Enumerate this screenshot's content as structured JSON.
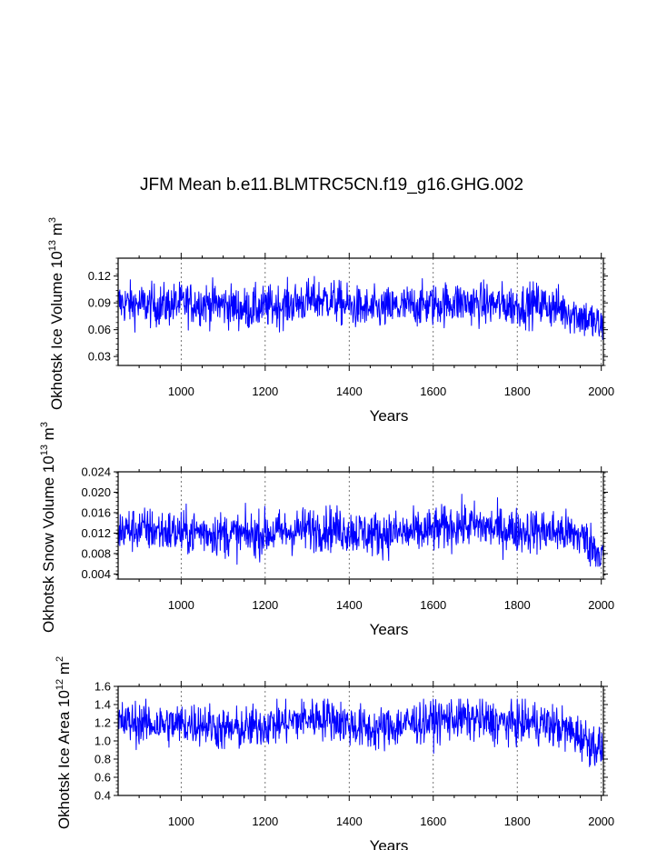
{
  "figure_title": "JFM Mean b.e11.BLMTRC5CN.f19_g16.GHG.002",
  "series_color": "#0000ff",
  "chart_data": [
    {
      "type": "line",
      "xlabel": "Years",
      "ylabel_main": "Okhotsk Ice Volume 10",
      "ylabel_exp": "13",
      "ylabel_unit": " m",
      "ylabel_unit_exp": "3",
      "xlim": [
        850,
        2005
      ],
      "ylim": [
        0.02,
        0.14
      ],
      "xticks": [
        1000,
        1200,
        1400,
        1600,
        1800,
        2000
      ],
      "xtick_labels": [
        "1000",
        "1200",
        "1400",
        "1600",
        "1800",
        "2000"
      ],
      "yticks": [
        0.03,
        0.06,
        0.09,
        0.12
      ],
      "ytick_labels": [
        "0.03",
        "0.06",
        "0.09",
        "0.12"
      ],
      "grid_x": true,
      "series": [
        {
          "name": "Okhotsk Ice Volume",
          "anchors": [
            [
              850,
              0.09
            ],
            [
              900,
              0.088
            ],
            [
              950,
              0.087
            ],
            [
              1000,
              0.089
            ],
            [
              1050,
              0.09
            ],
            [
              1100,
              0.088
            ],
            [
              1150,
              0.083
            ],
            [
              1200,
              0.085
            ],
            [
              1250,
              0.088
            ],
            [
              1300,
              0.092
            ],
            [
              1350,
              0.094
            ],
            [
              1400,
              0.086
            ],
            [
              1450,
              0.082
            ],
            [
              1500,
              0.084
            ],
            [
              1550,
              0.087
            ],
            [
              1600,
              0.088
            ],
            [
              1650,
              0.091
            ],
            [
              1700,
              0.089
            ],
            [
              1750,
              0.088
            ],
            [
              1800,
              0.087
            ],
            [
              1850,
              0.089
            ],
            [
              1900,
              0.084
            ],
            [
              1950,
              0.076
            ],
            [
              2005,
              0.062
            ]
          ],
          "noise": 0.012,
          "range": [
            0.035,
            0.13
          ]
        }
      ]
    },
    {
      "type": "line",
      "xlabel": "Years",
      "ylabel_main": "Okhotsk Snow Volume 10",
      "ylabel_exp": "13",
      "ylabel_unit": " m",
      "ylabel_unit_exp": "3",
      "xlim": [
        850,
        2005
      ],
      "ylim": [
        0.003,
        0.024
      ],
      "xticks": [
        1000,
        1200,
        1400,
        1600,
        1800,
        2000
      ],
      "xtick_labels": [
        "1000",
        "1200",
        "1400",
        "1600",
        "1800",
        "2000"
      ],
      "yticks": [
        0.004,
        0.008,
        0.012,
        0.016,
        0.02,
        0.024
      ],
      "ytick_labels": [
        "0.004",
        "0.008",
        "0.012",
        "0.016",
        "0.020",
        "0.024"
      ],
      "grid_x": true,
      "series": [
        {
          "name": "Okhotsk Snow Volume",
          "anchors": [
            [
              850,
              0.0125
            ],
            [
              900,
              0.0128
            ],
            [
              950,
              0.0125
            ],
            [
              1000,
              0.012
            ],
            [
              1050,
              0.0123
            ],
            [
              1100,
              0.0118
            ],
            [
              1150,
              0.0115
            ],
            [
              1200,
              0.012
            ],
            [
              1250,
              0.0122
            ],
            [
              1300,
              0.0128
            ],
            [
              1350,
              0.013
            ],
            [
              1400,
              0.0125
            ],
            [
              1450,
              0.0118
            ],
            [
              1500,
              0.012
            ],
            [
              1550,
              0.012
            ],
            [
              1600,
              0.0125
            ],
            [
              1650,
              0.0135
            ],
            [
              1700,
              0.0135
            ],
            [
              1750,
              0.0128
            ],
            [
              1800,
              0.0125
            ],
            [
              1850,
              0.0125
            ],
            [
              1900,
              0.0122
            ],
            [
              1950,
              0.0115
            ],
            [
              2005,
              0.0075
            ]
          ],
          "noise": 0.0022,
          "range": [
            0.0055,
            0.0212
          ]
        }
      ]
    },
    {
      "type": "line",
      "xlabel": "Years",
      "ylabel_main": "Okhotsk Ice Area 10",
      "ylabel_exp": "12",
      "ylabel_unit": " m",
      "ylabel_unit_exp": "2",
      "xlim": [
        850,
        2005
      ],
      "ylim": [
        0.4,
        1.6
      ],
      "xticks": [
        1000,
        1200,
        1400,
        1600,
        1800,
        2000
      ],
      "xtick_labels": [
        "1000",
        "1200",
        "1400",
        "1600",
        "1800",
        "2000"
      ],
      "yticks": [
        0.4,
        0.6,
        0.8,
        1.0,
        1.2,
        1.4,
        1.6
      ],
      "ytick_labels": [
        "0.4",
        "0.6",
        "0.8",
        "1.0",
        "1.2",
        "1.4",
        "1.6"
      ],
      "grid_x": true,
      "series": [
        {
          "name": "Okhotsk Ice Area",
          "anchors": [
            [
              850,
              1.2
            ],
            [
              900,
              1.2
            ],
            [
              950,
              1.18
            ],
            [
              1000,
              1.18
            ],
            [
              1050,
              1.2
            ],
            [
              1100,
              1.12
            ],
            [
              1150,
              1.13
            ],
            [
              1200,
              1.18
            ],
            [
              1250,
              1.2
            ],
            [
              1300,
              1.25
            ],
            [
              1350,
              1.26
            ],
            [
              1400,
              1.18
            ],
            [
              1450,
              1.12
            ],
            [
              1500,
              1.15
            ],
            [
              1550,
              1.2
            ],
            [
              1600,
              1.22
            ],
            [
              1650,
              1.25
            ],
            [
              1700,
              1.24
            ],
            [
              1750,
              1.2
            ],
            [
              1800,
              1.2
            ],
            [
              1850,
              1.2
            ],
            [
              1900,
              1.15
            ],
            [
              1950,
              1.05
            ],
            [
              2005,
              0.9
            ]
          ],
          "noise": 0.12,
          "range": [
            0.58,
            1.46
          ]
        }
      ]
    }
  ]
}
